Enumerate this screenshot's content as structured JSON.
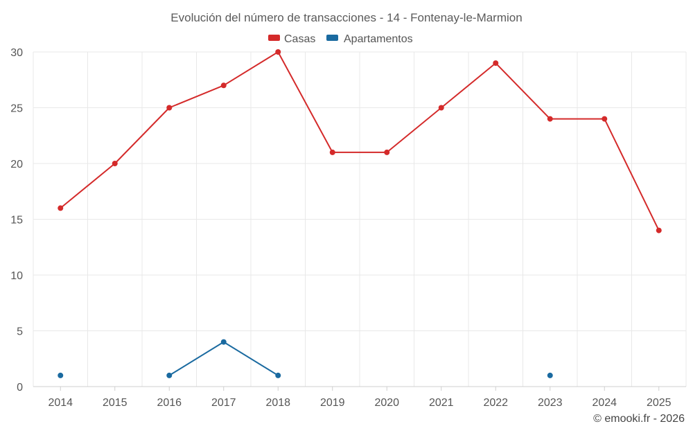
{
  "chart_data": {
    "type": "line",
    "title": "Evolución del número de transacciones - 14 - Fontenay-le-Marmion",
    "categories": [
      "2014",
      "2015",
      "2016",
      "2017",
      "2018",
      "2019",
      "2020",
      "2021",
      "2022",
      "2023",
      "2024",
      "2025"
    ],
    "ylim": [
      0,
      30
    ],
    "yticks": [
      0,
      5,
      10,
      15,
      20,
      25,
      30
    ],
    "legend_position": "top-center",
    "grid": true,
    "series": [
      {
        "name": "Casas",
        "color": "#d42a2a",
        "values": [
          16,
          20,
          25,
          27,
          30,
          21,
          21,
          25,
          29,
          24,
          24,
          14
        ]
      },
      {
        "name": "Apartamentos",
        "color": "#1a6aa0",
        "values": [
          1,
          null,
          1,
          4,
          1,
          null,
          null,
          null,
          null,
          1,
          null,
          null
        ]
      }
    ]
  },
  "credit": "© emooki.fr - 2026"
}
